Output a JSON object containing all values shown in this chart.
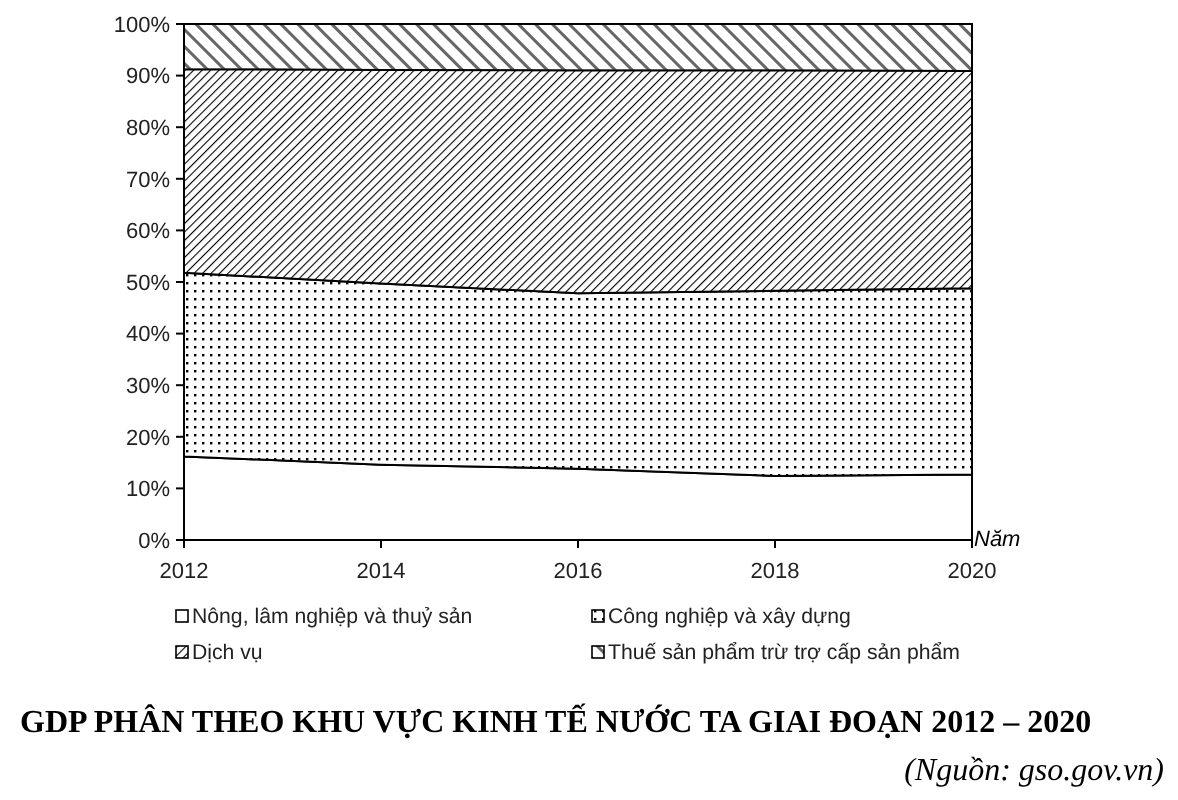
{
  "chart_data": {
    "type": "area",
    "stacked": true,
    "title": "GDP PHÂN THEO KHU VỰC KINH TẾ NƯỚC TA GIAI ĐOẠN 2012 – 2020",
    "xlabel": "Năm",
    "annotations": [
      "(Nguồn: gso.gov.vn)"
    ],
    "x": [
      2012,
      2014,
      2016,
      2018,
      2020
    ],
    "series": [
      {
        "name": "Nông, lâm nghiệp và thuỷ sản",
        "color": "#000000",
        "values": [
          16.2,
          14.6,
          13.8,
          12.4,
          12.7
        ]
      },
      {
        "name": "Công nghiệp và xây dựng",
        "color": "#000000",
        "values": [
          35.6,
          35.1,
          34.0,
          35.9,
          36.1
        ]
      },
      {
        "name": "Dịch vụ",
        "color": "#000000",
        "values": [
          39.4,
          41.4,
          43.2,
          42.7,
          42.1
        ]
      },
      {
        "name": "Thuế sản phẩm trừ trợ cấp sản phẩm",
        "color": "#666666",
        "values": [
          8.8,
          8.9,
          9.0,
          9.0,
          9.1
        ]
      }
    ],
    "xlim": [
      2012,
      2020
    ],
    "xticks": [
      2012,
      2014,
      2016,
      2018,
      2020
    ],
    "ylim": [
      0,
      100
    ],
    "yticks": [
      {
        "value": 0,
        "label": "0%"
      },
      {
        "value": 10,
        "label": "10%"
      },
      {
        "value": 20,
        "label": "20%"
      },
      {
        "value": 30,
        "label": "30%"
      },
      {
        "value": 40,
        "label": "40%"
      },
      {
        "value": 50,
        "label": "50%"
      },
      {
        "value": 60,
        "label": "60%"
      },
      {
        "value": 70,
        "label": "70%"
      },
      {
        "value": 80,
        "label": "80%"
      },
      {
        "value": 90,
        "label": "90%"
      },
      {
        "value": 100,
        "label": "100%"
      }
    ],
    "legend": "bottom"
  }
}
